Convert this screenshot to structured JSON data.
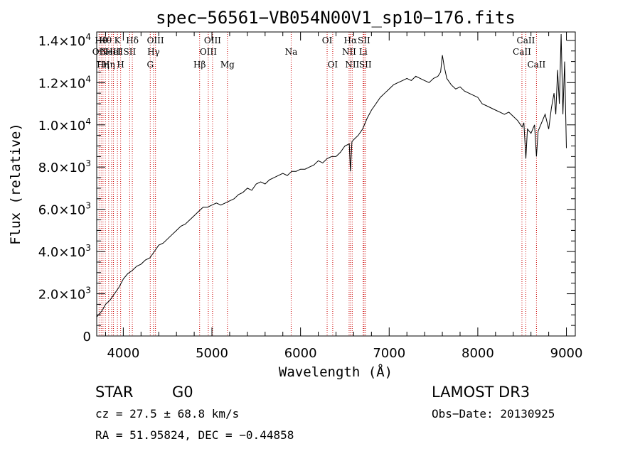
{
  "chart_data": {
    "type": "line",
    "title": "spec−56561−VB054N00V1_sp10−176.fits",
    "xlabel": "Wavelength (Å)",
    "ylabel": "Flux (relative)",
    "xlim": [
      3700,
      9100
    ],
    "ylim": [
      0,
      14400
    ],
    "x_ticks": [
      {
        "value": 4000,
        "label": "4000"
      },
      {
        "value": 5000,
        "label": "5000"
      },
      {
        "value": 6000,
        "label": "6000"
      },
      {
        "value": 7000,
        "label": "7000"
      },
      {
        "value": 8000,
        "label": "8000"
      },
      {
        "value": 9000,
        "label": "9000"
      }
    ],
    "y_ticks": [
      {
        "value": 0,
        "mant": "0",
        "exp": ""
      },
      {
        "value": 2000,
        "mant": "2.0×10",
        "exp": "3"
      },
      {
        "value": 4000,
        "mant": "4.0×10",
        "exp": "3"
      },
      {
        "value": 6000,
        "mant": "6.0×10",
        "exp": "3"
      },
      {
        "value": 8000,
        "mant": "8.0×10",
        "exp": "3"
      },
      {
        "value": 10000,
        "mant": "1.0×10",
        "exp": "4"
      },
      {
        "value": 12000,
        "mant": "1.2×10",
        "exp": "4"
      },
      {
        "value": 14000,
        "mant": "1.4×10",
        "exp": "4"
      }
    ],
    "series": [
      {
        "name": "flux",
        "x": [
          3700,
          3760,
          3800,
          3850,
          3900,
          3950,
          4000,
          4050,
          4100,
          4150,
          4200,
          4250,
          4300,
          4350,
          4400,
          4450,
          4500,
          4550,
          4600,
          4650,
          4700,
          4750,
          4800,
          4850,
          4900,
          4950,
          5000,
          5050,
          5100,
          5150,
          5200,
          5250,
          5300,
          5350,
          5400,
          5450,
          5500,
          5550,
          5600,
          5650,
          5700,
          5750,
          5800,
          5850,
          5900,
          5950,
          6000,
          6050,
          6100,
          6150,
          6200,
          6250,
          6300,
          6350,
          6400,
          6450,
          6500,
          6550,
          6563,
          6580,
          6600,
          6650,
          6700,
          6750,
          6800,
          6850,
          6900,
          6950,
          7000,
          7050,
          7100,
          7150,
          7200,
          7250,
          7300,
          7350,
          7400,
          7450,
          7500,
          7550,
          7580,
          7600,
          7620,
          7650,
          7700,
          7750,
          7800,
          7850,
          7900,
          7950,
          8000,
          8050,
          8100,
          8150,
          8200,
          8250,
          8300,
          8350,
          8400,
          8450,
          8500,
          8520,
          8542,
          8560,
          8600,
          8640,
          8662,
          8680,
          8720,
          8760,
          8800,
          8830,
          8860,
          8880,
          8900,
          8920,
          8940,
          8960,
          8980,
          9000
        ],
        "y": [
          900,
          1200,
          1500,
          1700,
          2000,
          2300,
          2700,
          2950,
          3100,
          3300,
          3400,
          3600,
          3700,
          4000,
          4300,
          4400,
          4600,
          4800,
          5000,
          5200,
          5300,
          5500,
          5700,
          5900,
          6100,
          6100,
          6200,
          6300,
          6200,
          6300,
          6400,
          6500,
          6700,
          6800,
          7000,
          6900,
          7200,
          7300,
          7200,
          7400,
          7500,
          7600,
          7700,
          7600,
          7800,
          7800,
          7900,
          7900,
          8000,
          8100,
          8300,
          8200,
          8400,
          8500,
          8500,
          8700,
          9000,
          9100,
          7800,
          9200,
          9300,
          9500,
          9800,
          10300,
          10700,
          11000,
          11300,
          11500,
          11700,
          11900,
          12000,
          12100,
          12200,
          12100,
          12300,
          12200,
          12100,
          12000,
          12200,
          12300,
          12500,
          13300,
          12800,
          12200,
          11900,
          11700,
          11800,
          11600,
          11500,
          11400,
          11300,
          11000,
          10900,
          10800,
          10700,
          10600,
          10500,
          10600,
          10400,
          10200,
          9900,
          10100,
          8400,
          9800,
          9600,
          10000,
          8500,
          9700,
          10100,
          10500,
          9800,
          10800,
          11500,
          10500,
          12600,
          11000,
          14300,
          10500,
          13000,
          8900
        ]
      }
    ],
    "emission_lines": [
      {
        "x": 3727,
        "label": "OII",
        "row": 2
      },
      {
        "x": 3750,
        "label": "Hθ",
        "row": 1
      },
      {
        "x": 3771,
        "label": "Hη",
        "row": 3
      },
      {
        "x": 3798,
        "label": "Hθ",
        "row": 1
      },
      {
        "x": 3835,
        "label": "Hη",
        "row": 3
      },
      {
        "x": 3869,
        "label": "NeIII",
        "row": 2
      },
      {
        "x": 3889,
        "label": "HeI",
        "row": 2
      },
      {
        "x": 3934,
        "label": "K",
        "row": 1
      },
      {
        "x": 3970,
        "label": "H",
        "row": 3
      },
      {
        "x": 4072,
        "label": "SII",
        "row": 2
      },
      {
        "x": 4102,
        "label": "Hδ",
        "row": 1
      },
      {
        "x": 4304,
        "label": "G",
        "row": 3
      },
      {
        "x": 4341,
        "label": "Hγ",
        "row": 2
      },
      {
        "x": 4363,
        "label": "OIII",
        "row": 1
      },
      {
        "x": 4861,
        "label": "Hβ",
        "row": 3
      },
      {
        "x": 4959,
        "label": "OIII",
        "row": 2
      },
      {
        "x": 5007,
        "label": "OIII",
        "row": 1
      },
      {
        "x": 5175,
        "label": "Mg",
        "row": 3
      },
      {
        "x": 5894,
        "label": "Na",
        "row": 2
      },
      {
        "x": 6300,
        "label": "OI",
        "row": 1
      },
      {
        "x": 6363,
        "label": "OI",
        "row": 3
      },
      {
        "x": 6548,
        "label": "NII",
        "row": 2
      },
      {
        "x": 6563,
        "label": "Hα",
        "row": 1
      },
      {
        "x": 6583,
        "label": "NII",
        "row": 3
      },
      {
        "x": 6707,
        "label": "Li",
        "row": 2
      },
      {
        "x": 6716,
        "label": "SII",
        "row": 1
      },
      {
        "x": 6731,
        "label": "SII",
        "row": 3
      },
      {
        "x": 8498,
        "label": "CaII",
        "row": 2
      },
      {
        "x": 8542,
        "label": "CaII",
        "row": 1
      },
      {
        "x": 8662,
        "label": "CaII",
        "row": 3
      }
    ]
  },
  "info": {
    "object_type": "STAR",
    "subclass": "G0",
    "survey": "LAMOST DR3",
    "redshift_text": "cz = 27.5 ± 68.8 km/s",
    "obs_date_text": "Obs−Date: 20130925",
    "coords_text": "RA =  51.95824, DEC =  −0.44858"
  }
}
